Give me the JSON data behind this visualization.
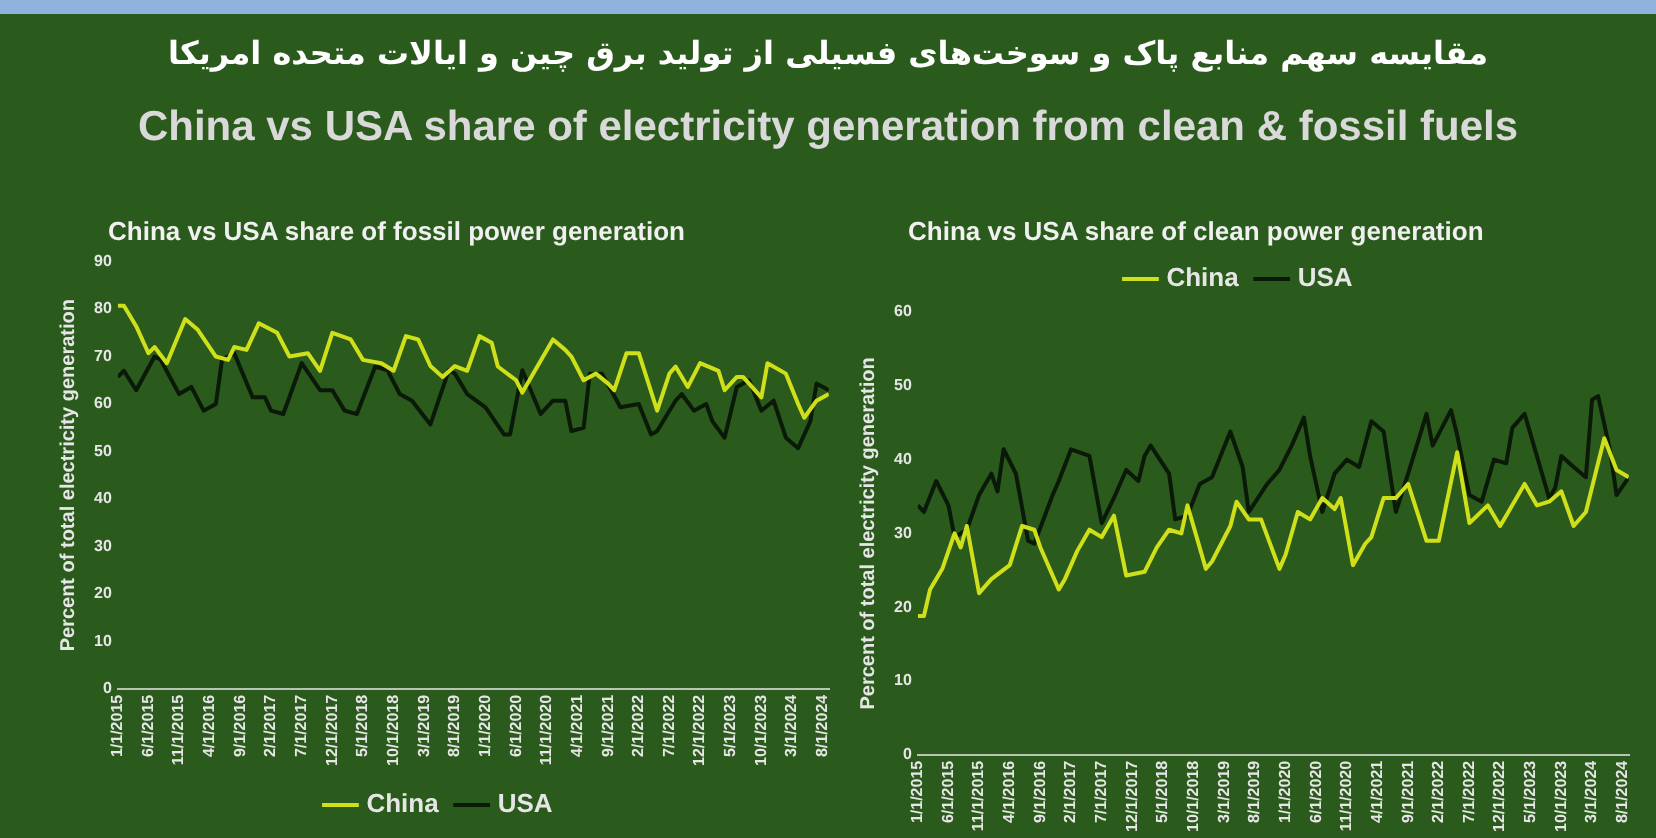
{
  "chart_data": [
    {
      "type": "other",
      "title": "مقایسه سهم منابع پاک و سوخت‌های فسیلی از تولید برق چین و ایالات متحده امریکا",
      "subtitle": "China vs USA share of electricity generation from clean & fossil fuels"
    },
    {
      "type": "line",
      "title": "China vs USA share of fossil power generation",
      "ylabel": "Percent of total electricity generation",
      "legend": "bottom",
      "grid": false,
      "xlim": [
        "2015-01",
        "2024-09"
      ],
      "ylim": [
        0,
        90
      ],
      "yticks": [
        0,
        10,
        20,
        30,
        40,
        50,
        60,
        70,
        80,
        90
      ],
      "xticks": [
        {
          "value": "2015-01",
          "label": "1/1/2015"
        },
        {
          "value": "2015-06",
          "label": "6/1/2015"
        },
        {
          "value": "2015-11",
          "label": "11/1/2015"
        },
        {
          "value": "2016-04",
          "label": "4/1/2016"
        },
        {
          "value": "2016-09",
          "label": "9/1/2016"
        },
        {
          "value": "2017-02",
          "label": "2/1/2017"
        },
        {
          "value": "2017-07",
          "label": "7/1/2017"
        },
        {
          "value": "2017-12",
          "label": "12/1/2017"
        },
        {
          "value": "2018-05",
          "label": "5/1/2018"
        },
        {
          "value": "2018-10",
          "label": "10/1/2018"
        },
        {
          "value": "2019-03",
          "label": "3/1/2019"
        },
        {
          "value": "2019-08",
          "label": "8/1/2019"
        },
        {
          "value": "2020-01",
          "label": "1/1/2020"
        },
        {
          "value": "2020-06",
          "label": "6/1/2020"
        },
        {
          "value": "2020-11",
          "label": "11/1/2020"
        },
        {
          "value": "2021-04",
          "label": "4/1/2021"
        },
        {
          "value": "2021-09",
          "label": "9/1/2021"
        },
        {
          "value": "2022-02",
          "label": "2/1/2022"
        },
        {
          "value": "2022-07",
          "label": "7/1/2022"
        },
        {
          "value": "2022-12",
          "label": "12/1/2022"
        },
        {
          "value": "2023-05",
          "label": "5/1/2023"
        },
        {
          "value": "2023-10",
          "label": "10/1/2023"
        },
        {
          "value": "2024-03",
          "label": "3/1/2024"
        },
        {
          "value": "2024-08",
          "label": "8/1/2024"
        }
      ],
      "series": [
        {
          "name": "China",
          "color": "#cfe01a",
          "x": [
            "2015-01",
            "2015-02",
            "2015-04",
            "2015-06",
            "2015-07",
            "2015-09",
            "2015-12",
            "2016-02",
            "2016-05",
            "2016-07",
            "2016-08",
            "2016-10",
            "2016-12",
            "2017-03",
            "2017-05",
            "2017-08",
            "2017-10",
            "2017-12",
            "2018-03",
            "2018-05",
            "2018-08",
            "2018-10",
            "2018-12",
            "2019-02",
            "2019-04",
            "2019-06",
            "2019-08",
            "2019-10",
            "2019-12",
            "2020-02",
            "2020-03",
            "2020-06",
            "2020-07",
            "2020-12",
            "2021-02",
            "2021-03",
            "2021-05",
            "2021-07",
            "2021-09",
            "2021-10",
            "2021-12",
            "2022-02",
            "2022-05",
            "2022-07",
            "2022-08",
            "2022-10",
            "2022-12",
            "2023-03",
            "2023-04",
            "2023-06",
            "2023-07",
            "2023-10",
            "2023-11",
            "2024-02",
            "2024-04",
            "2024-05",
            "2024-07",
            "2024-09"
          ],
          "values": [
            80.7,
            80.7,
            76.4,
            70.7,
            72,
            68.6,
            77.9,
            75.7,
            70,
            69.3,
            72,
            71.4,
            77,
            75,
            70,
            70.7,
            67,
            75,
            73.6,
            69.3,
            68.6,
            67,
            74.3,
            73.6,
            68,
            65.7,
            68,
            67,
            74.3,
            72.9,
            67.9,
            65,
            62.4,
            73.6,
            71.4,
            70,
            65,
            66.4,
            64.3,
            62.9,
            70.7,
            70.7,
            58.6,
            66.4,
            67.9,
            63.6,
            68.6,
            67,
            62.9,
            65.7,
            65.7,
            61.4,
            68.6,
            66.4,
            60,
            57.1,
            60.7,
            62.1
          ]
        },
        {
          "name": "USA",
          "color": "#0b1a08",
          "x": [
            "2015-01",
            "2015-02",
            "2015-04",
            "2015-07",
            "2015-08",
            "2015-11",
            "2016-01",
            "2016-03",
            "2016-05",
            "2016-06",
            "2016-08",
            "2016-11",
            "2017-01",
            "2017-02",
            "2017-04",
            "2017-07",
            "2017-10",
            "2017-12",
            "2018-02",
            "2018-04",
            "2018-07",
            "2018-09",
            "2018-11",
            "2019-01",
            "2019-04",
            "2019-07",
            "2019-08",
            "2019-10",
            "2020-01",
            "2020-04",
            "2020-05",
            "2020-07",
            "2020-10",
            "2020-12",
            "2021-02",
            "2021-03",
            "2021-05",
            "2021-06",
            "2021-08",
            "2021-11",
            "2022-02",
            "2022-04",
            "2022-05",
            "2022-08",
            "2022-09",
            "2022-11",
            "2023-01",
            "2023-02",
            "2023-04",
            "2023-06",
            "2023-08",
            "2023-10",
            "2023-12",
            "2024-02",
            "2024-04",
            "2024-06",
            "2024-07",
            "2024-09"
          ],
          "values": [
            65.7,
            67,
            62.9,
            70,
            69.3,
            62.1,
            63.6,
            58.6,
            60,
            69.3,
            70.7,
            61.4,
            61.4,
            58.6,
            57.9,
            68.6,
            62.9,
            62.9,
            58.6,
            57.9,
            67.9,
            67.1,
            62.1,
            60.7,
            55.7,
            67.1,
            66.4,
            62.1,
            59.3,
            53.6,
            53.6,
            67.1,
            57.9,
            60.7,
            60.7,
            54.3,
            55,
            66.4,
            66.4,
            59.3,
            60,
            53.6,
            54.3,
            60.7,
            62.1,
            58.6,
            60,
            56.4,
            52.9,
            63.6,
            65,
            58.6,
            60.7,
            52.9,
            50.7,
            56.4,
            64.3,
            62.9
          ]
        }
      ]
    },
    {
      "type": "line",
      "title": "China vs USA share of clean power generation",
      "ylabel": "Percent of total electricity generation",
      "legend": "top",
      "grid": false,
      "xlim": [
        "2015-01",
        "2024-09"
      ],
      "ylim": [
        0,
        60
      ],
      "yticks": [
        0,
        10,
        20,
        30,
        40,
        50,
        60
      ],
      "xticks": [
        {
          "value": "2015-01",
          "label": "1/1/2015"
        },
        {
          "value": "2015-06",
          "label": "6/1/2015"
        },
        {
          "value": "2015-11",
          "label": "11/1/2015"
        },
        {
          "value": "2016-04",
          "label": "4/1/2016"
        },
        {
          "value": "2016-09",
          "label": "9/1/2016"
        },
        {
          "value": "2017-02",
          "label": "2/1/2017"
        },
        {
          "value": "2017-07",
          "label": "7/1/2017"
        },
        {
          "value": "2017-12",
          "label": "12/1/2017"
        },
        {
          "value": "2018-05",
          "label": "5/1/2018"
        },
        {
          "value": "2018-10",
          "label": "10/1/2018"
        },
        {
          "value": "2019-03",
          "label": "3/1/2019"
        },
        {
          "value": "2019-08",
          "label": "8/1/2019"
        },
        {
          "value": "2020-01",
          "label": "1/1/2020"
        },
        {
          "value": "2020-06",
          "label": "6/1/2020"
        },
        {
          "value": "2020-11",
          "label": "11/1/2020"
        },
        {
          "value": "2021-04",
          "label": "4/1/2021"
        },
        {
          "value": "2021-09",
          "label": "9/1/2021"
        },
        {
          "value": "2022-02",
          "label": "2/1/2022"
        },
        {
          "value": "2022-07",
          "label": "7/1/2022"
        },
        {
          "value": "2022-12",
          "label": "12/1/2022"
        },
        {
          "value": "2023-05",
          "label": "5/1/2023"
        },
        {
          "value": "2023-10",
          "label": "10/1/2023"
        },
        {
          "value": "2024-03",
          "label": "3/1/2024"
        },
        {
          "value": "2024-08",
          "label": "8/1/2024"
        }
      ],
      "series": [
        {
          "name": "China",
          "color": "#cfe01a",
          "x": [
            "2015-01",
            "2015-02",
            "2015-03",
            "2015-05",
            "2015-07",
            "2015-08",
            "2015-09",
            "2015-11",
            "2016-01",
            "2016-04",
            "2016-06",
            "2016-08",
            "2016-09",
            "2016-12",
            "2017-01",
            "2017-03",
            "2017-05",
            "2017-07",
            "2017-09",
            "2017-11",
            "2018-02",
            "2018-04",
            "2018-06",
            "2018-08",
            "2018-09",
            "2018-12",
            "2019-01",
            "2019-04",
            "2019-05",
            "2019-07",
            "2019-09",
            "2019-12",
            "2020-01",
            "2020-03",
            "2020-05",
            "2020-07",
            "2020-09",
            "2020-10",
            "2020-12",
            "2021-02",
            "2021-03",
            "2021-05",
            "2021-07",
            "2021-09",
            "2021-12",
            "2022-02",
            "2022-05",
            "2022-07",
            "2022-10",
            "2022-12",
            "2023-01",
            "2023-04",
            "2023-06",
            "2023-08",
            "2023-10",
            "2023-12",
            "2024-02",
            "2024-05",
            "2024-07",
            "2024-09"
          ],
          "values": [
            18.8,
            18.8,
            22.4,
            25.2,
            30,
            28.1,
            31,
            21.9,
            23.8,
            25.7,
            31,
            30.5,
            28.1,
            22.4,
            23.8,
            27.6,
            30.5,
            29.5,
            32.4,
            24.3,
            24.8,
            28.1,
            30.5,
            30,
            33.8,
            25.2,
            26.2,
            31,
            34.3,
            31.9,
            31.9,
            25.2,
            27.1,
            32.9,
            31.9,
            34.8,
            33.3,
            34.8,
            25.7,
            28.6,
            29.5,
            34.8,
            34.8,
            36.7,
            29,
            29,
            41,
            31.4,
            33.8,
            31,
            32.4,
            36.7,
            33.8,
            34.3,
            35.7,
            31,
            32.9,
            42.9,
            38.6,
            37.6
          ]
        },
        {
          "name": "USA",
          "color": "#0b1a08",
          "x": [
            "2015-01",
            "2015-02",
            "2015-04",
            "2015-06",
            "2015-07",
            "2015-09",
            "2015-11",
            "2016-01",
            "2016-02",
            "2016-03",
            "2016-05",
            "2016-07",
            "2016-08",
            "2016-11",
            "2016-12",
            "2017-02",
            "2017-05",
            "2017-07",
            "2017-09",
            "2017-11",
            "2018-01",
            "2018-02",
            "2018-03",
            "2018-06",
            "2018-07",
            "2018-09",
            "2018-11",
            "2019-01",
            "2019-04",
            "2019-06",
            "2019-07",
            "2019-10",
            "2019-12",
            "2020-02",
            "2020-04",
            "2020-05",
            "2020-07",
            "2020-09",
            "2020-11",
            "2021-01",
            "2021-03",
            "2021-05",
            "2021-07",
            "2021-09",
            "2021-12",
            "2022-01",
            "2022-04",
            "2022-05",
            "2022-07",
            "2022-09",
            "2022-11",
            "2023-01",
            "2023-02",
            "2023-04",
            "2023-06",
            "2023-08",
            "2023-09",
            "2023-10",
            "2023-12",
            "2024-02",
            "2024-03",
            "2024-04",
            "2024-06",
            "2024-07",
            "2024-09"
          ],
          "values": [
            33.8,
            32.9,
            37.1,
            33.8,
            29.5,
            30.5,
            35.2,
            38.1,
            35.7,
            41.4,
            38.1,
            29,
            28.6,
            35.2,
            37.1,
            41.4,
            40.5,
            31.4,
            34.8,
            38.6,
            37.1,
            40.5,
            41.9,
            38.1,
            31.9,
            32.4,
            36.7,
            37.6,
            43.8,
            39,
            32.9,
            36.7,
            38.6,
            41.9,
            45.7,
            40.5,
            32.9,
            38.1,
            40,
            39,
            45.2,
            43.8,
            32.9,
            38.1,
            46.2,
            41.9,
            46.7,
            43.3,
            35.2,
            34.3,
            40,
            39.5,
            44.3,
            46.2,
            40.5,
            34.8,
            36.2,
            40.5,
            39,
            37.6,
            48.1,
            48.6,
            41,
            35.2,
            37.6
          ]
        }
      ]
    }
  ]
}
